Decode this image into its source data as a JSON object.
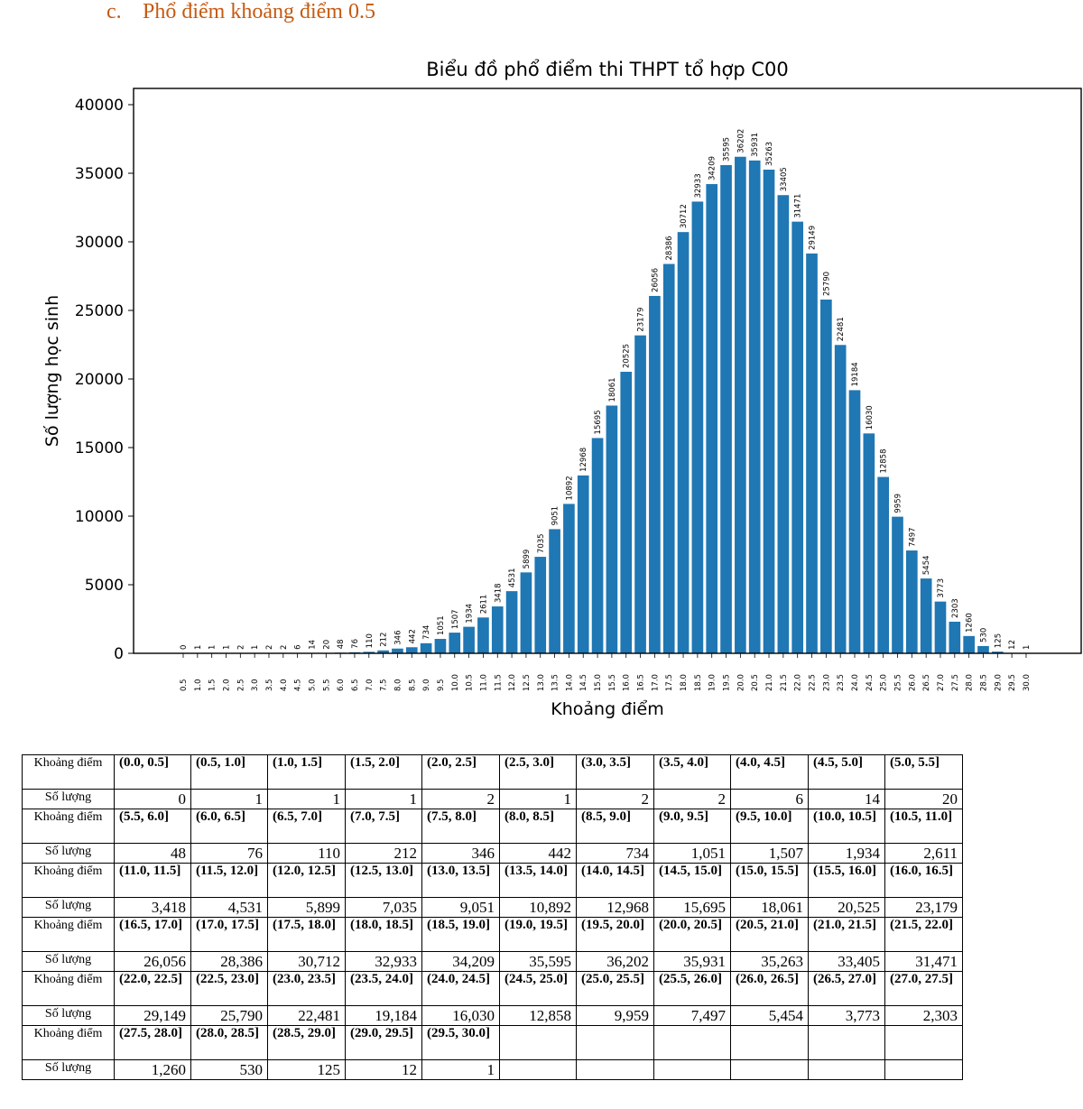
{
  "heading": {
    "number": "c.",
    "text": "Phổ điểm khoảng điểm 0.5"
  },
  "chart_data": {
    "type": "bar",
    "title": "Biểu đồ phổ điểm thi THPT tổ hợp C00",
    "xlabel": "Khoảng điểm",
    "ylabel": "Số lượng học sinh",
    "ylim": [
      0,
      40000
    ],
    "yticks": [
      "0",
      "5000",
      "10000",
      "15000",
      "20000",
      "25000",
      "30000",
      "35000",
      "40000"
    ],
    "categories": [
      "0.5",
      "1.0",
      "1.5",
      "2.0",
      "2.5",
      "3.0",
      "3.5",
      "4.0",
      "4.5",
      "5.0",
      "5.5",
      "6.0",
      "6.5",
      "7.0",
      "7.5",
      "8.0",
      "8.5",
      "9.0",
      "9.5",
      "10.0",
      "10.5",
      "11.0",
      "11.5",
      "12.0",
      "12.5",
      "13.0",
      "13.5",
      "14.0",
      "14.5",
      "15.0",
      "15.5",
      "16.0",
      "16.5",
      "17.0",
      "17.5",
      "18.0",
      "18.5",
      "19.0",
      "19.5",
      "20.0",
      "20.5",
      "21.0",
      "21.5",
      "22.0",
      "22.5",
      "23.0",
      "23.5",
      "24.0",
      "24.5",
      "25.0",
      "25.5",
      "26.0",
      "26.5",
      "27.0",
      "27.5",
      "28.0",
      "28.5",
      "29.0",
      "29.5",
      "30.0"
    ],
    "values": [
      0,
      1,
      1,
      1,
      2,
      1,
      2,
      2,
      6,
      14,
      20,
      48,
      76,
      110,
      212,
      346,
      442,
      734,
      1051,
      1507,
      1934,
      2611,
      3418,
      4531,
      5899,
      7035,
      9051,
      10892,
      12968,
      15695,
      18061,
      20525,
      23179,
      26056,
      28386,
      30712,
      32933,
      34209,
      35595,
      36202,
      35931,
      35263,
      33405,
      31471,
      29149,
      25790,
      22481,
      19184,
      16030,
      12858,
      9959,
      7497,
      5454,
      3773,
      2303,
      1260,
      530,
      125,
      12,
      1
    ],
    "bar_color": "#1f77b4",
    "grid": false
  },
  "table": {
    "range_label": "Khoảng điểm",
    "count_label": "Số lượng",
    "rows": [
      {
        "ranges": [
          "(0.0, 0.5]",
          "(0.5, 1.0]",
          "(1.0, 1.5]",
          "(1.5, 2.0]",
          "(2.0, 2.5]",
          "(2.5, 3.0]",
          "(3.0, 3.5]",
          "(3.5, 4.0]",
          "(4.0, 4.5]",
          "(4.5, 5.0]",
          "(5.0, 5.5]"
        ],
        "counts": [
          "0",
          "1",
          "1",
          "1",
          "2",
          "1",
          "2",
          "2",
          "6",
          "14",
          "20"
        ]
      },
      {
        "ranges": [
          "(5.5, 6.0]",
          "(6.0, 6.5]",
          "(6.5, 7.0]",
          "(7.0, 7.5]",
          "(7.5, 8.0]",
          "(8.0, 8.5]",
          "(8.5, 9.0]",
          "(9.0, 9.5]",
          "(9.5, 10.0]",
          "(10.0, 10.5]",
          "(10.5, 11.0]"
        ],
        "counts": [
          "48",
          "76",
          "110",
          "212",
          "346",
          "442",
          "734",
          "1,051",
          "1,507",
          "1,934",
          "2,611"
        ]
      },
      {
        "ranges": [
          "(11.0, 11.5]",
          "(11.5, 12.0]",
          "(12.0, 12.5]",
          "(12.5, 13.0]",
          "(13.0, 13.5]",
          "(13.5, 14.0]",
          "(14.0, 14.5]",
          "(14.5, 15.0]",
          "(15.0, 15.5]",
          "(15.5, 16.0]",
          "(16.0, 16.5]"
        ],
        "counts": [
          "3,418",
          "4,531",
          "5,899",
          "7,035",
          "9,051",
          "10,892",
          "12,968",
          "15,695",
          "18,061",
          "20,525",
          "23,179"
        ]
      },
      {
        "ranges": [
          "(16.5, 17.0]",
          "(17.0, 17.5]",
          "(17.5, 18.0]",
          "(18.0, 18.5]",
          "(18.5, 19.0]",
          "(19.0, 19.5]",
          "(19.5, 20.0]",
          "(20.0, 20.5]",
          "(20.5, 21.0]",
          "(21.0, 21.5]",
          "(21.5, 22.0]"
        ],
        "counts": [
          "26,056",
          "28,386",
          "30,712",
          "32,933",
          "34,209",
          "35,595",
          "36,202",
          "35,931",
          "35,263",
          "33,405",
          "31,471"
        ]
      },
      {
        "ranges": [
          "(22.0, 22.5]",
          "(22.5, 23.0]",
          "(23.0, 23.5]",
          "(23.5, 24.0]",
          "(24.0, 24.5]",
          "(24.5, 25.0]",
          "(25.0, 25.5]",
          "(25.5, 26.0]",
          "(26.0, 26.5]",
          "(26.5, 27.0]",
          "(27.0, 27.5]"
        ],
        "counts": [
          "29,149",
          "25,790",
          "22,481",
          "19,184",
          "16,030",
          "12,858",
          "9,959",
          "7,497",
          "5,454",
          "3,773",
          "2,303"
        ]
      },
      {
        "ranges": [
          "(27.5, 28.0]",
          "(28.0, 28.5]",
          "(28.5, 29.0]",
          "(29.0, 29.5]",
          "(29.5, 30.0]",
          "",
          "",
          "",
          "",
          "",
          ""
        ],
        "counts": [
          "1,260",
          "530",
          "125",
          "12",
          "1",
          "",
          "",
          "",
          "",
          "",
          ""
        ]
      }
    ]
  }
}
